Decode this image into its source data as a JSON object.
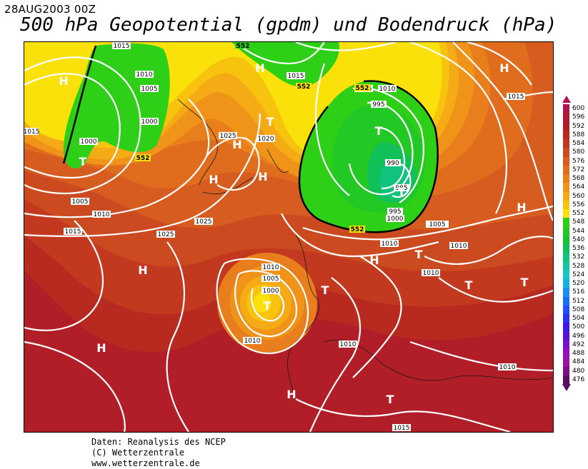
{
  "header": {
    "date": "28AUG2003 00Z",
    "title": "500 hPa Geopotential (gpdm) und Bodendruck (hPa)"
  },
  "credits": {
    "line1": "Daten: Reanalysis des NCEP",
    "line2": "(C) Wetterzentrale",
    "line3": "www.wetterzentrale.de"
  },
  "legend": {
    "levels": [
      {
        "label": "600",
        "color": "#b3114f"
      },
      {
        "label": "596",
        "color": "#b01833"
      },
      {
        "label": "592",
        "color": "#b21e27"
      },
      {
        "label": "588",
        "color": "#b82a20"
      },
      {
        "label": "584",
        "color": "#c2391f"
      },
      {
        "label": "580",
        "color": "#cc4a1f"
      },
      {
        "label": "576",
        "color": "#d65c1f"
      },
      {
        "label": "572",
        "color": "#e06c1e"
      },
      {
        "label": "568",
        "color": "#e87f1c"
      },
      {
        "label": "564",
        "color": "#ef9419"
      },
      {
        "label": "560",
        "color": "#f4ab15"
      },
      {
        "label": "556",
        "color": "#f7c30f"
      },
      {
        "label": "552",
        "color": "#fbe10a"
      },
      {
        "label": "548",
        "color": "#2ecf17"
      },
      {
        "label": "544",
        "color": "#22c924"
      },
      {
        "label": "540",
        "color": "#16c42e"
      },
      {
        "label": "536",
        "color": "#12c05a"
      },
      {
        "label": "532",
        "color": "#10c27c"
      },
      {
        "label": "528",
        "color": "#12c6a2"
      },
      {
        "label": "524",
        "color": "#15c8c8"
      },
      {
        "label": "520",
        "color": "#18b0e0"
      },
      {
        "label": "516",
        "color": "#1890f0"
      },
      {
        "label": "512",
        "color": "#1a70f5"
      },
      {
        "label": "508",
        "color": "#2050f5"
      },
      {
        "label": "504",
        "color": "#2a30f0"
      },
      {
        "label": "500",
        "color": "#3d18e6"
      },
      {
        "label": "496",
        "color": "#5a10d8"
      },
      {
        "label": "492",
        "color": "#7a0fcc"
      },
      {
        "label": "488",
        "color": "#9a10bc"
      },
      {
        "label": "484",
        "color": "#9c12a0"
      },
      {
        "label": "480",
        "color": "#7d1080"
      },
      {
        "label": "476",
        "color": "#5a0e5e"
      }
    ]
  },
  "map": {
    "pressure_labels": [
      "1015",
      "1010",
      "1005",
      "1000",
      "1015",
      "1010",
      "1005",
      "1000",
      "1025",
      "1020",
      "1015",
      "1025",
      "1025",
      "1015",
      "1010",
      "1005",
      "1000",
      "995",
      "990",
      "985",
      "995",
      "1000",
      "1005",
      "1010",
      "1010",
      "1005",
      "1000",
      "1010",
      "1010",
      "1010",
      "1010",
      "1010",
      "1015",
      "1015"
    ],
    "pressure_systems": [
      "H",
      "H",
      "H",
      "T",
      "T",
      "H",
      "H",
      "H",
      "T",
      "H",
      "T",
      "T",
      "H",
      "T",
      "T",
      "H",
      "H",
      "T",
      "H",
      "T",
      "T",
      "H"
    ],
    "geopotential_labels": [
      "552",
      "552",
      "552",
      "552",
      "552"
    ]
  }
}
